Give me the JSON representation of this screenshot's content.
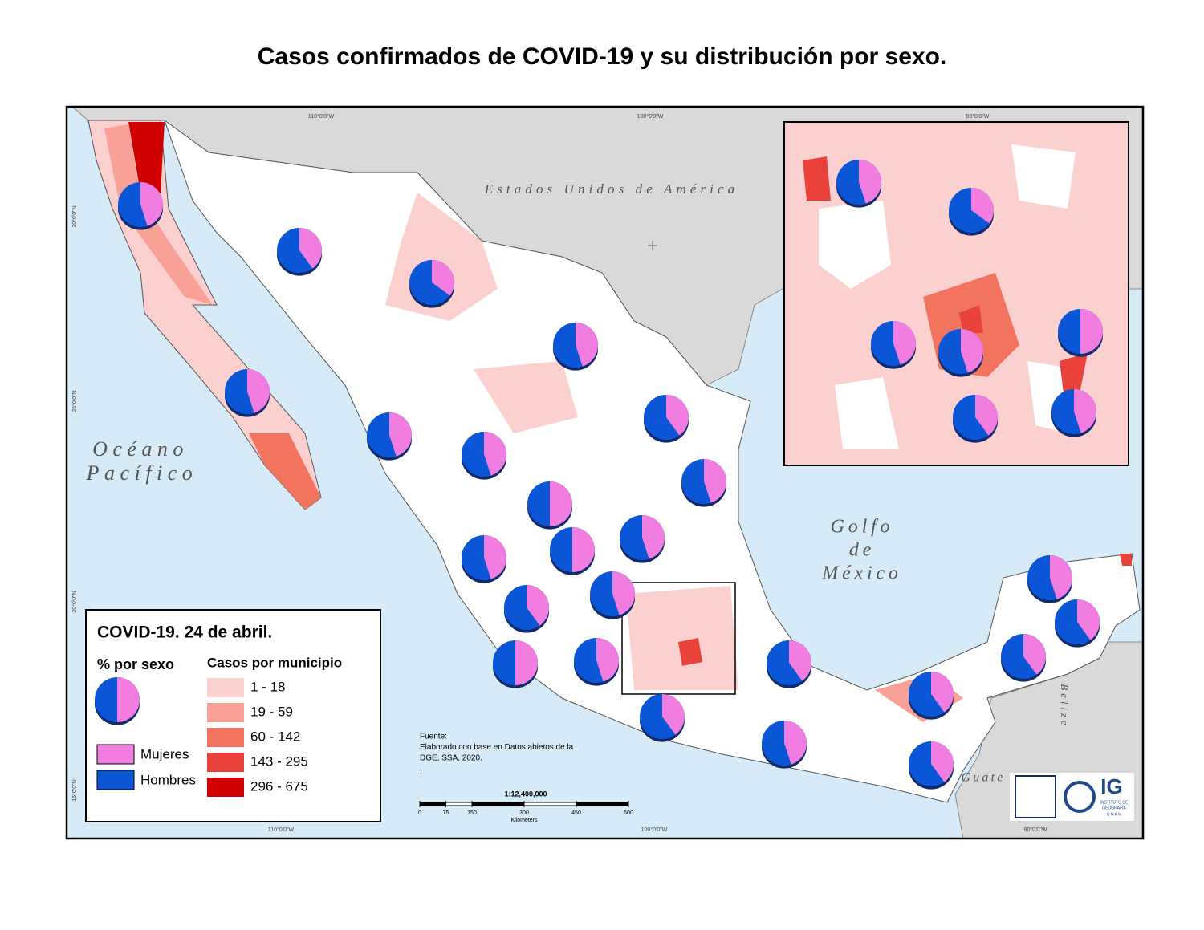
{
  "title": "Casos confirmados de COVID-19 y su distribución por sexo.",
  "map_labels": {
    "usa": "Estados Unidos de América",
    "ocean1": "Océano",
    "ocean2": "Pacífico",
    "gulf1": "Golfo",
    "gulf2": "de",
    "gulf3": "México",
    "belize": "Belize",
    "guate": "Guate"
  },
  "graticule": {
    "lon": [
      "110°0'0\"W",
      "100°0'0\"W",
      "90°0'0\"W"
    ],
    "lat": [
      "30°0'0\"N",
      "25°0'0\"N",
      "20°0'0\"N",
      "15°0'0\"N"
    ]
  },
  "legend": {
    "title": "COVID-19. 24 de abril.",
    "sex_heading": "% por sexo",
    "cases_heading": "Casos por municipio",
    "classes": [
      {
        "label": "1 - 18",
        "color": "#fcd0cf"
      },
      {
        "label": "19 - 59",
        "color": "#f9a196"
      },
      {
        "label": "60 - 142",
        "color": "#f2735e"
      },
      {
        "label": "143 - 295",
        "color": "#e8423a"
      },
      {
        "label": "296 - 675",
        "color": "#d10000"
      }
    ],
    "sexes": [
      {
        "label": "Mujeres",
        "color": "#f17de0"
      },
      {
        "label": "Hombres",
        "color": "#0a56d6"
      }
    ]
  },
  "source": [
    "Fuente:",
    "Elaborado con base en Datos abietos de la",
    "DGE, SSA, 2020.",
    "."
  ],
  "scale_bar": {
    "ratio": "1:12,400,000",
    "ticks": [
      0,
      75,
      150,
      300,
      450,
      600
    ],
    "unit": "Kilometers"
  },
  "logo": {
    "acronym": "IG",
    "line1": "INSTITUTO DE",
    "line2": "GEOGRAFÍA",
    "line3": "U N A M"
  },
  "main_pies_mujeres": [
    45,
    40,
    35,
    45,
    45,
    45,
    40,
    45,
    45,
    50,
    45,
    50,
    45,
    40,
    45,
    50,
    45,
    40,
    40,
    45,
    40,
    40,
    45,
    40,
    40
  ],
  "inset_pies_mujeres": [
    45,
    35,
    45,
    50,
    45,
    40,
    45
  ]
}
